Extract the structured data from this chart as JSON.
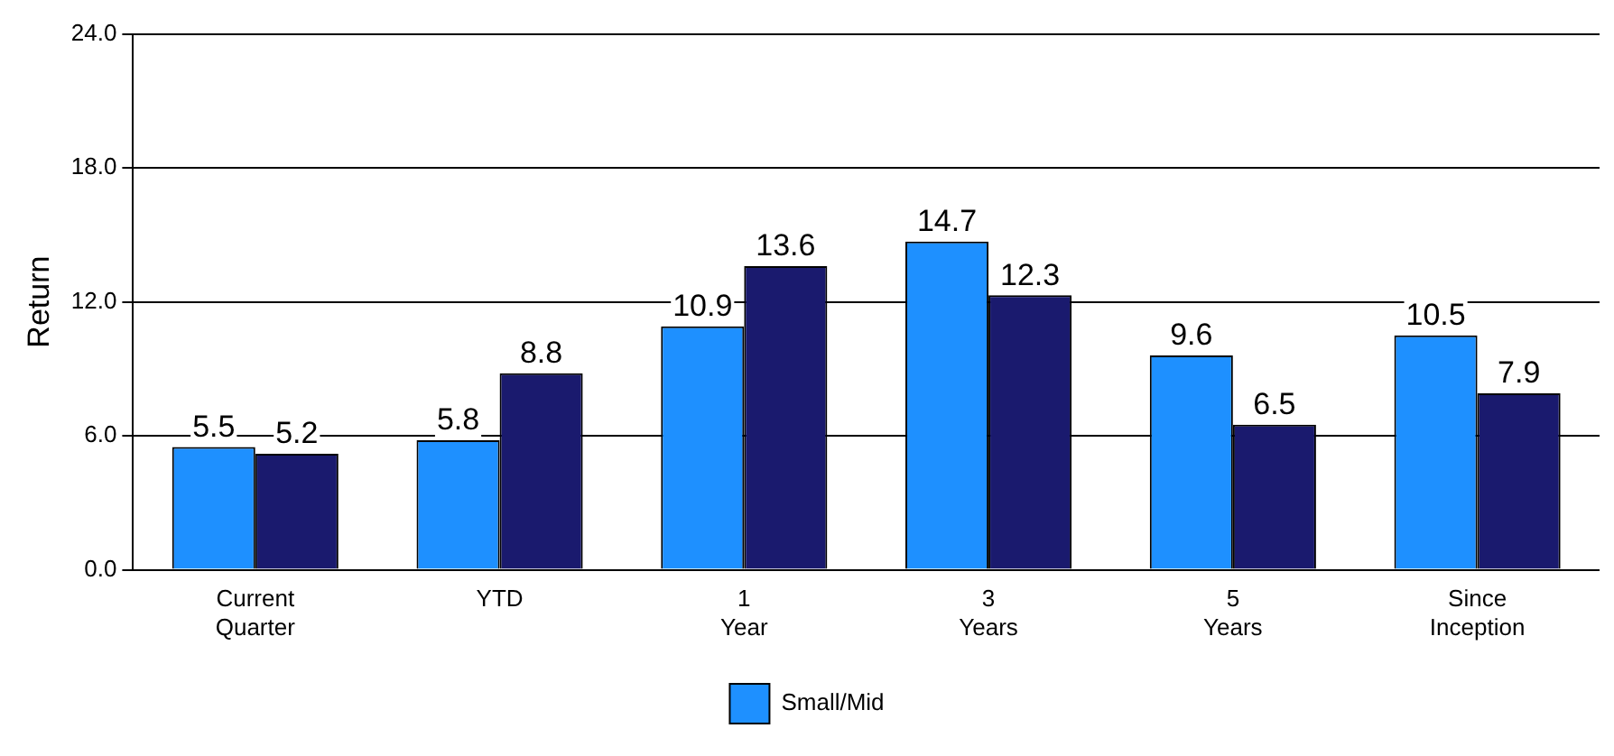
{
  "chart_data": {
    "type": "bar",
    "ylabel": "Return",
    "categories": [
      "Current Quarter",
      "YTD",
      "1 Year",
      "3 Years",
      "5 Years",
      "Since Inception"
    ],
    "series": [
      {
        "name": "Small/Mid",
        "color": "#1e90ff",
        "values": [
          5.5,
          5.8,
          10.9,
          14.7,
          9.6,
          10.5
        ]
      },
      {
        "color": "#1a1a6e",
        "values": [
          5.2,
          8.8,
          13.6,
          12.3,
          6.5,
          7.9
        ]
      }
    ],
    "ylim": [
      0,
      24
    ],
    "yticks": [
      {
        "value": 0,
        "label": "0.0"
      },
      {
        "value": 6,
        "label": "6.0"
      },
      {
        "value": 12,
        "label": "12.0"
      },
      {
        "value": 18,
        "label": "18.0"
      },
      {
        "value": 24,
        "label": "24.0"
      }
    ],
    "grid": "y",
    "legend": "bottom",
    "data_labels": true
  }
}
